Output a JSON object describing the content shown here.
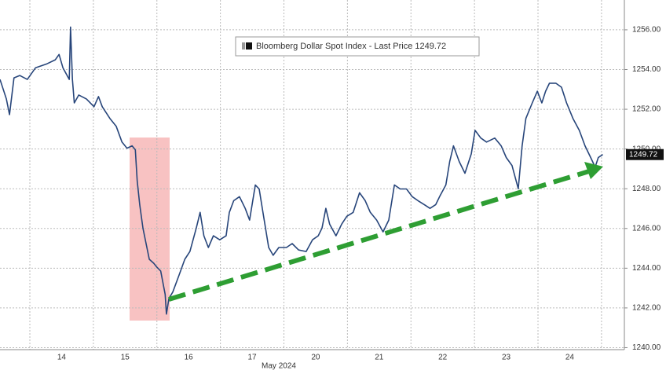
{
  "chart_data": {
    "type": "line",
    "x": [
      -0.47,
      -0.37,
      -0.32,
      -0.25,
      -0.16,
      -0.04,
      0.09,
      0.27,
      0.4,
      0.46,
      0.52,
      0.62,
      0.64,
      0.67,
      0.7,
      0.77,
      0.89,
      1.01,
      1.08,
      1.14,
      1.26,
      1.36,
      1.45,
      1.53,
      1.61,
      1.66,
      1.69,
      1.73,
      1.78,
      1.83,
      1.88,
      1.95,
      2.0,
      2.06,
      2.13,
      2.15,
      2.19,
      2.25,
      2.35,
      2.44,
      2.52,
      2.62,
      2.68,
      2.74,
      2.81,
      2.89,
      2.99,
      3.09,
      3.14,
      3.21,
      3.3,
      3.39,
      3.46,
      3.55,
      3.61,
      3.67,
      3.76,
      3.83,
      3.92,
      4.04,
      4.13,
      4.23,
      4.35,
      4.45,
      4.54,
      4.6,
      4.66,
      4.72,
      4.82,
      4.91,
      4.99,
      5.09,
      5.19,
      5.28,
      5.36,
      5.46,
      5.56,
      5.65,
      5.74,
      5.83,
      5.93,
      6.02,
      6.11,
      6.21,
      6.3,
      6.39,
      6.45,
      6.55,
      6.61,
      6.67,
      6.76,
      6.85,
      6.95,
      7.01,
      7.1,
      7.19,
      7.32,
      7.42,
      7.5,
      7.59,
      7.69,
      7.75,
      7.81,
      7.91,
      7.99,
      8.06,
      8.12,
      8.18,
      8.28,
      8.37,
      8.45,
      8.55,
      8.65,
      8.74,
      8.83,
      8.9,
      8.95,
      9.02
    ],
    "series": [
      {
        "name": "Bloomberg Dollar Spot Index - Last Price 1249.72",
        "color": "#27457a",
        "values": [
          1253.5,
          1252.52,
          1251.73,
          1253.58,
          1253.7,
          1253.5,
          1254.09,
          1254.29,
          1254.49,
          1254.76,
          1254.09,
          1253.5,
          1256.14,
          1253.5,
          1252.32,
          1252.72,
          1252.52,
          1252.13,
          1252.64,
          1252.13,
          1251.54,
          1251.14,
          1250.35,
          1250.04,
          1250.16,
          1249.96,
          1248.39,
          1247.2,
          1246.02,
          1245.24,
          1244.45,
          1244.25,
          1244.05,
          1243.86,
          1242.68,
          1241.69,
          1242.48,
          1242.8,
          1243.66,
          1244.45,
          1244.84,
          1246.02,
          1246.81,
          1245.63,
          1245.04,
          1245.63,
          1245.43,
          1245.63,
          1246.81,
          1247.4,
          1247.6,
          1247.01,
          1246.42,
          1248.19,
          1247.99,
          1246.81,
          1245.04,
          1244.65,
          1245.04,
          1245.04,
          1245.24,
          1244.92,
          1244.84,
          1245.43,
          1245.63,
          1246.02,
          1247.01,
          1246.22,
          1245.63,
          1246.22,
          1246.61,
          1246.81,
          1247.8,
          1247.4,
          1246.81,
          1246.42,
          1245.83,
          1246.42,
          1248.19,
          1247.99,
          1247.99,
          1247.6,
          1247.4,
          1247.2,
          1247.01,
          1247.2,
          1247.6,
          1248.19,
          1249.37,
          1250.16,
          1249.37,
          1248.78,
          1249.76,
          1250.94,
          1250.55,
          1250.35,
          1250.55,
          1250.16,
          1249.57,
          1249.17,
          1248.0,
          1250.16,
          1251.54,
          1252.32,
          1252.91,
          1252.32,
          1252.91,
          1253.31,
          1253.31,
          1253.11,
          1252.32,
          1251.54,
          1250.94,
          1250.16,
          1249.57,
          1249.09,
          1249.57,
          1249.72
        ]
      }
    ],
    "xlim": [
      -0.47,
      9.36
    ],
    "xticks": [
      {
        "value": 0.5,
        "label": "14"
      },
      {
        "value": 1.5,
        "label": "15"
      },
      {
        "value": 2.5,
        "label": "16"
      },
      {
        "value": 3.5,
        "label": "17"
      },
      {
        "value": 4.5,
        "label": "20"
      },
      {
        "value": 5.5,
        "label": "21"
      },
      {
        "value": 6.5,
        "label": "22"
      },
      {
        "value": 7.5,
        "label": "23"
      },
      {
        "value": 8.5,
        "label": "24"
      }
    ],
    "x_label": "May 2024",
    "ylim": [
      1239.9,
      1257.5
    ],
    "yticks": [
      {
        "value": 1240,
        "label": "1240.00"
      },
      {
        "value": 1242,
        "label": "1242.00"
      },
      {
        "value": 1244,
        "label": "1244.00"
      },
      {
        "value": 1246,
        "label": "1246.00"
      },
      {
        "value": 1248,
        "label": "1248.00"
      },
      {
        "value": 1250,
        "label": "1250.00"
      },
      {
        "value": 1252,
        "label": "1252.00"
      },
      {
        "value": 1254,
        "label": "1254.00"
      },
      {
        "value": 1256,
        "label": "1256.00"
      }
    ],
    "grid": true
  }
}
